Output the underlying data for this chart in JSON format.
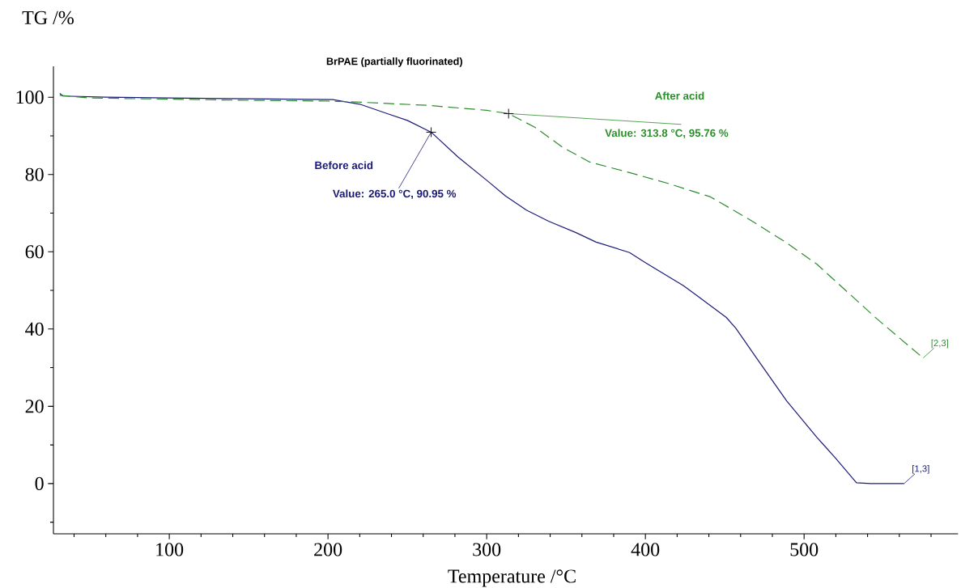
{
  "chart_data": {
    "type": "line",
    "title": "BrPAE (partially fluorinated)",
    "xlabel": "Temperature /°C",
    "ylabel": "TG /%",
    "xlim": [
      27,
      597
    ],
    "ylim": [
      -13,
      108
    ],
    "xticks": [
      {
        "value": 40,
        "label": null
      },
      {
        "value": 60,
        "label": null
      },
      {
        "value": 80,
        "label": null
      },
      100,
      {
        "value": 120,
        "label": null
      },
      {
        "value": 140,
        "label": null
      },
      {
        "value": 160,
        "label": null
      },
      {
        "value": 180,
        "label": null
      },
      200,
      {
        "value": 220,
        "label": null
      },
      {
        "value": 240,
        "label": null
      },
      {
        "value": 260,
        "label": null
      },
      {
        "value": 280,
        "label": null
      },
      300,
      {
        "value": 320,
        "label": null
      },
      {
        "value": 340,
        "label": null
      },
      {
        "value": 360,
        "label": null
      },
      {
        "value": 380,
        "label": null
      },
      400,
      {
        "value": 420,
        "label": null
      },
      {
        "value": 440,
        "label": null
      },
      {
        "value": 460,
        "label": null
      },
      {
        "value": 480,
        "label": null
      },
      500,
      {
        "value": 520,
        "label": null
      },
      {
        "value": 540,
        "label": null
      },
      {
        "value": 560,
        "label": null
      },
      {
        "value": 580,
        "label": null
      }
    ],
    "yticks": [
      {
        "value": -10,
        "label": null
      },
      0,
      {
        "value": 10,
        "label": null
      },
      20,
      {
        "value": 30,
        "label": null
      },
      40,
      {
        "value": 50,
        "label": null
      },
      60,
      {
        "value": 70,
        "label": null
      },
      80,
      {
        "value": 90,
        "label": null
      },
      100
    ],
    "series": [
      {
        "name": "Before acid",
        "color": "#1c1c78",
        "line_style": "solid",
        "x": [
          31,
          33,
          60,
          100,
          150,
          203,
          220,
          237,
          250,
          265,
          282,
          300,
          312,
          325,
          339,
          356,
          369,
          390,
          400,
          424,
          432,
          451,
          457,
          470,
          489,
          508,
          520,
          533,
          542,
          563
        ],
        "values": [
          101.0,
          100.3,
          100.0,
          99.8,
          99.6,
          99.4,
          98.2,
          95.8,
          94.0,
          90.95,
          84.5,
          78.5,
          74.4,
          70.8,
          67.9,
          65.0,
          62.5,
          59.8,
          57.2,
          51.2,
          48.8,
          43.0,
          40.2,
          32.5,
          21.4,
          12.0,
          6.5,
          0.2,
          0,
          0
        ]
      },
      {
        "name": "After acid",
        "color": "#2e8b2e",
        "line_style": "dashed",
        "x": [
          31,
          50,
          100,
          150,
          200,
          221,
          263,
          300,
          313.8,
          330.5,
          348,
          365,
          390,
          415,
          441,
          465,
          489,
          508,
          527,
          546,
          575
        ],
        "values": [
          100.5,
          99.8,
          99.5,
          99.2,
          99.0,
          98.7,
          97.9,
          96.6,
          95.76,
          92.2,
          87.0,
          83.2,
          80.5,
          77.6,
          74.2,
          68.5,
          62.3,
          56.8,
          49.7,
          42.6,
          32.5
        ]
      }
    ],
    "annotations": [
      {
        "text": "Value: 265.0 °C, 90.95 %",
        "x": 265,
        "y": 90.95
      },
      {
        "text": "Value: 313.8 °C, 95.76 %",
        "x": 313.8,
        "y": 95.76
      },
      {
        "text": "[1,3]",
        "x": 563,
        "y": 0
      },
      {
        "text": "[2,3]",
        "x": 575,
        "y": 32.5
      }
    ]
  }
}
